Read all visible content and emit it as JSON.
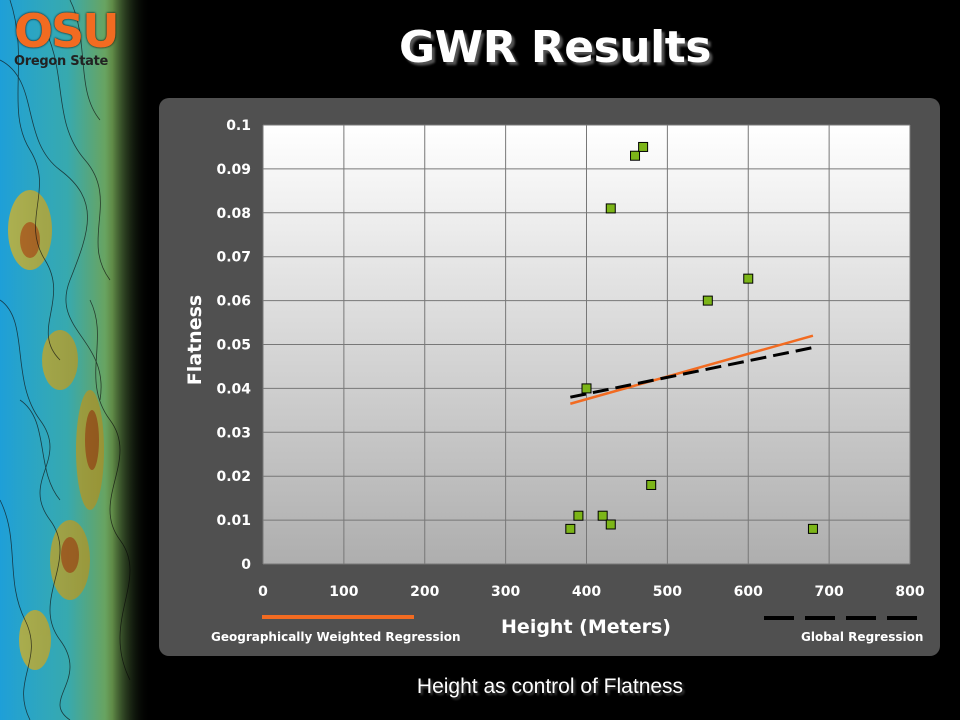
{
  "slide": {
    "title": "GWR Results",
    "caption": "Height as control of Flatness",
    "logo": {
      "text": "OSU",
      "subtext": "Oregon State"
    }
  },
  "colors": {
    "gwr_line": "#f26b21",
    "global_line": "#000000",
    "marker": "#7cb518",
    "logo": "#f26b21"
  },
  "chart_data": {
    "type": "scatter",
    "xlabel": "Height (Meters)",
    "ylabel": "Flatness",
    "xlim": [
      0,
      800
    ],
    "ylim": [
      0,
      0.1
    ],
    "xticks": [
      0,
      100,
      200,
      300,
      400,
      500,
      600,
      700,
      800
    ],
    "yticks": [
      0,
      0.01,
      0.02,
      0.03,
      0.04,
      0.05,
      0.06,
      0.07,
      0.08,
      0.09,
      0.1
    ],
    "xtick_labels": [
      "0",
      "100",
      "200",
      "300",
      "400",
      "500",
      "600",
      "700",
      "800"
    ],
    "ytick_labels": [
      "0",
      "0.01",
      "0.02",
      "0.03",
      "0.04",
      "0.05",
      "0.06",
      "0.07",
      "0.08",
      "0.09",
      "0.1"
    ],
    "grid": true,
    "points": [
      {
        "x": 380,
        "y": 0.008
      },
      {
        "x": 390,
        "y": 0.011
      },
      {
        "x": 400,
        "y": 0.04
      },
      {
        "x": 420,
        "y": 0.011
      },
      {
        "x": 430,
        "y": 0.009
      },
      {
        "x": 430,
        "y": 0.081
      },
      {
        "x": 460,
        "y": 0.093
      },
      {
        "x": 470,
        "y": 0.095
      },
      {
        "x": 480,
        "y": 0.018
      },
      {
        "x": 550,
        "y": 0.06
      },
      {
        "x": 600,
        "y": 0.065
      },
      {
        "x": 680,
        "y": 0.008
      }
    ],
    "lines": [
      {
        "name": "Geographically Weighted Regression",
        "style": "solid",
        "color": "#f26b21",
        "x": [
          380,
          680
        ],
        "y": [
          0.0365,
          0.052
        ]
      },
      {
        "name": "Global Regression",
        "style": "dashed",
        "color": "#000000",
        "x": [
          380,
          680
        ],
        "y": [
          0.038,
          0.0493
        ]
      }
    ],
    "legend": [
      {
        "label": "Geographically Weighted Regression",
        "placement": "bottom-left"
      },
      {
        "label": "Global Regression",
        "placement": "bottom-right"
      }
    ]
  }
}
